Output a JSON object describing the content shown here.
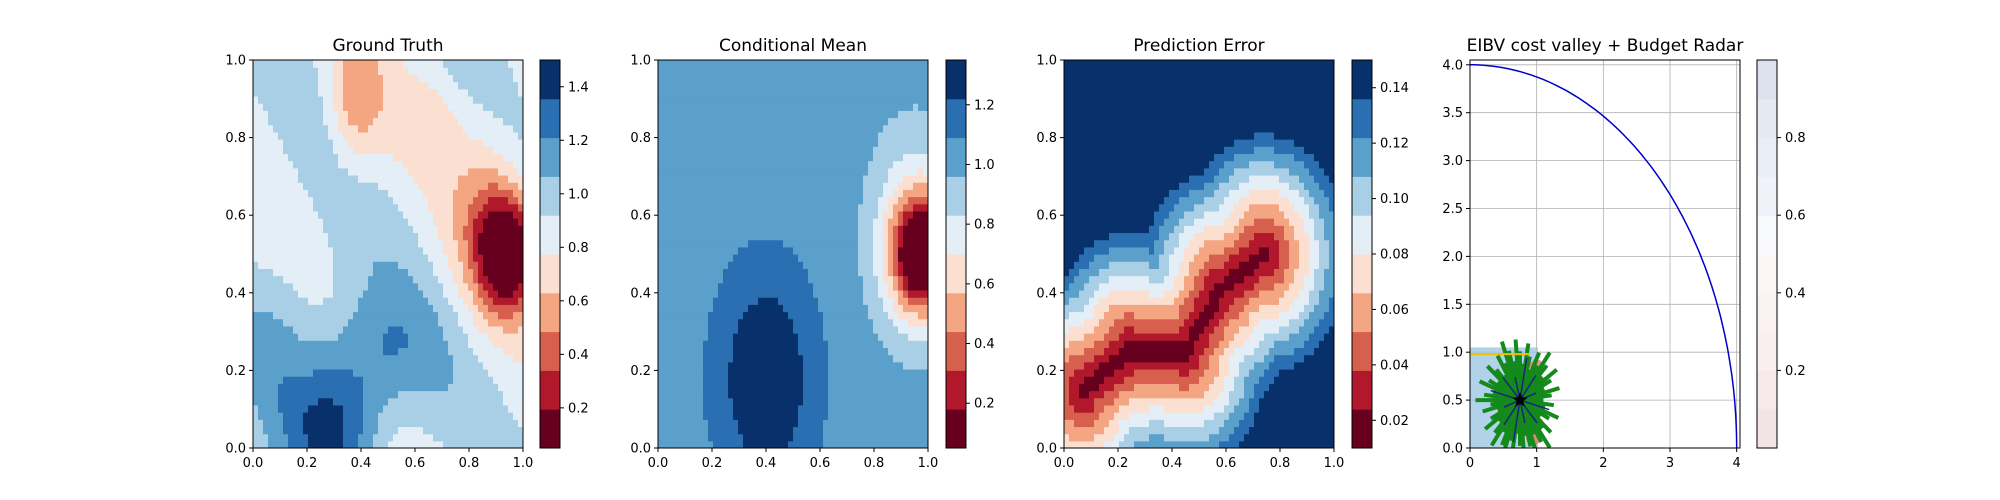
{
  "chart_data": [
    {
      "type": "heatmap",
      "title": "Ground Truth",
      "xlim": [
        0,
        1
      ],
      "ylim": [
        0,
        1
      ],
      "xticks": [
        "0.0",
        "0.2",
        "0.4",
        "0.6",
        "0.8",
        "1.0"
      ],
      "yticks": [
        "0.0",
        "0.2",
        "0.4",
        "0.6",
        "0.8",
        "1.0"
      ],
      "colormap": "RdBu",
      "colorbar": {
        "min": 0.05,
        "max": 1.5,
        "ticks": [
          "0.2",
          "0.4",
          "0.6",
          "0.8",
          "1.0",
          "1.2",
          "1.4"
        ],
        "tick_values": [
          0.2,
          0.4,
          0.6,
          0.8,
          1.0,
          1.2,
          1.4
        ]
      }
    },
    {
      "type": "heatmap",
      "title": "Conditional Mean",
      "xlim": [
        0,
        1
      ],
      "ylim": [
        0,
        1
      ],
      "xticks": [
        "0.0",
        "0.2",
        "0.4",
        "0.6",
        "0.8",
        "1.0"
      ],
      "yticks": [
        "0.0",
        "0.2",
        "0.4",
        "0.6",
        "0.8",
        "1.0"
      ],
      "colormap": "RdBu",
      "colorbar": {
        "min": 0.05,
        "max": 1.35,
        "ticks": [
          "0.2",
          "0.4",
          "0.6",
          "0.8",
          "1.0",
          "1.2"
        ],
        "tick_values": [
          0.2,
          0.4,
          0.6,
          0.8,
          1.0,
          1.2
        ]
      }
    },
    {
      "type": "heatmap",
      "title": "Prediction Error",
      "xlim": [
        0,
        1
      ],
      "ylim": [
        0,
        1
      ],
      "xticks": [
        "0.0",
        "0.2",
        "0.4",
        "0.6",
        "0.8",
        "1.0"
      ],
      "yticks": [
        "0.0",
        "0.2",
        "0.4",
        "0.6",
        "0.8",
        "1.0"
      ],
      "colormap": "RdBu",
      "colorbar": {
        "min": 0.01,
        "max": 0.15,
        "ticks": [
          "0.02",
          "0.04",
          "0.06",
          "0.08",
          "0.10",
          "0.12",
          "0.14"
        ],
        "tick_values": [
          0.02,
          0.04,
          0.06,
          0.08,
          0.1,
          0.12,
          0.14
        ]
      }
    },
    {
      "type": "scatter",
      "title": "EIBV cost valley + Budget Radar",
      "xlim": [
        0,
        4.05
      ],
      "ylim": [
        0,
        4.05
      ],
      "xticks": [
        "0",
        "1",
        "2",
        "3",
        "4"
      ],
      "yticks": [
        "0.0",
        "0.5",
        "1.0",
        "1.5",
        "2.0",
        "2.5",
        "3.0",
        "3.5",
        "4.0"
      ],
      "grid": true,
      "budget_radar_arc": {
        "center": [
          0,
          0
        ],
        "radius": 4.0,
        "color": "#0000cc"
      },
      "current_location": [
        0.75,
        0.5
      ],
      "colormap": "RdBu",
      "colorbar": {
        "min": 0,
        "max": 1,
        "ticks": [
          "0.2",
          "0.4",
          "0.6",
          "0.8"
        ],
        "tick_values": [
          0.2,
          0.4,
          0.6,
          0.8
        ]
      }
    }
  ]
}
